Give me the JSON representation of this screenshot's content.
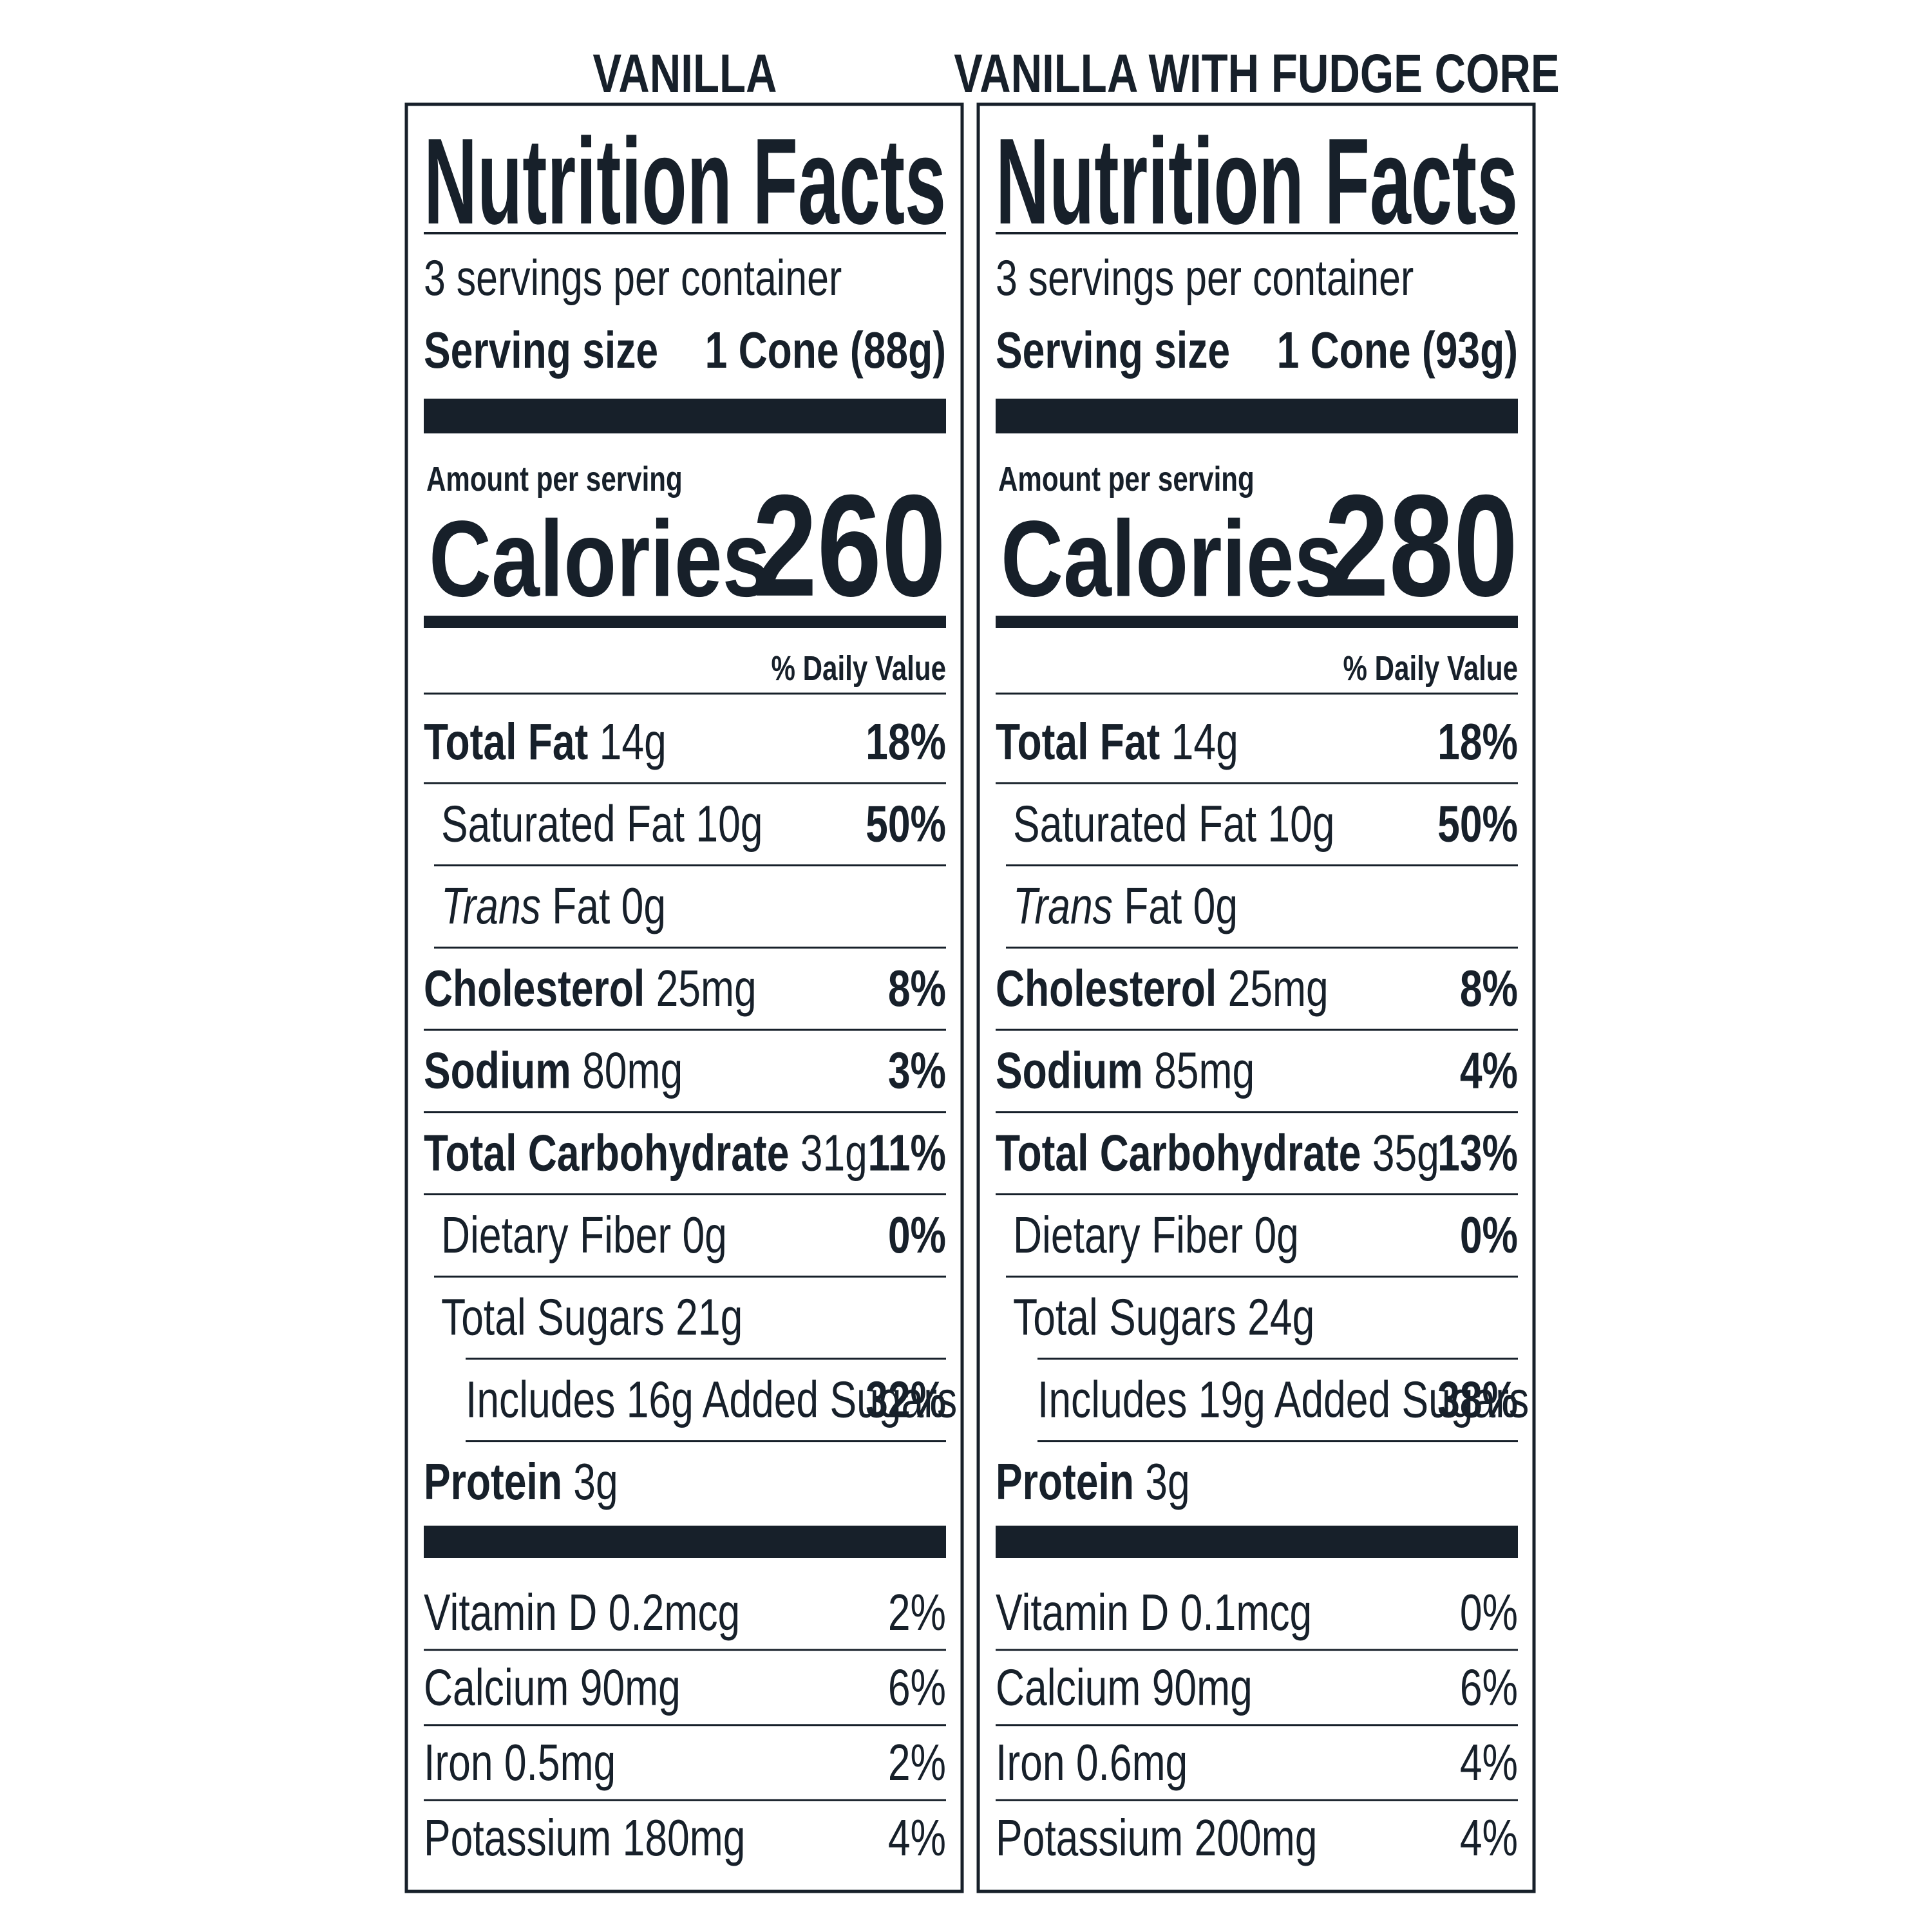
{
  "labels": [
    {
      "product": "VANILLA",
      "title": "Nutrition Facts",
      "servings": "3 servings per container",
      "serving_size_label": "Serving size",
      "serving_size": "1 Cone (88g)",
      "amount_per_serving": "Amount per serving",
      "calories_label": "Calories",
      "calories": "260",
      "daily_value_header": "% Daily Value",
      "nutrients": [
        {
          "name": "Total Fat",
          "amount": "14g",
          "dv": "18%"
        },
        {
          "name": "Saturated Fat",
          "amount": "10g",
          "dv": "50%"
        },
        {
          "name": "Trans",
          "amount": "Fat 0g"
        },
        {
          "name": "Cholesterol",
          "amount": "25mg",
          "dv": "8%"
        },
        {
          "name": "Sodium",
          "amount": "80mg",
          "dv": "3%"
        },
        {
          "name": "Total Carbohydrate",
          "amount": "31g",
          "dv": "11%"
        },
        {
          "name": "Dietary Fiber",
          "amount": "0g",
          "dv": "0%"
        },
        {
          "name": "Total Sugars",
          "amount": "21g"
        },
        {
          "name": "Includes 16g Added Sugars",
          "dv": "32%"
        },
        {
          "name": "Protein",
          "amount": "3g"
        }
      ],
      "vitamins": [
        {
          "name": "Vitamin D 0.2mcg",
          "dv": "2%"
        },
        {
          "name": "Calcium 90mg",
          "dv": "6%"
        },
        {
          "name": "Iron 0.5mg",
          "dv": "2%"
        },
        {
          "name": "Potassium 180mg",
          "dv": "4%"
        }
      ]
    },
    {
      "product": "VANILLA WITH FUDGE CORE",
      "title": "Nutrition Facts",
      "servings": "3 servings per container",
      "serving_size_label": "Serving size",
      "serving_size": "1 Cone (93g)",
      "amount_per_serving": "Amount per serving",
      "calories_label": "Calories",
      "calories": "280",
      "daily_value_header": "% Daily Value",
      "nutrients": [
        {
          "name": "Total Fat",
          "amount": "14g",
          "dv": "18%"
        },
        {
          "name": "Saturated Fat",
          "amount": "10g",
          "dv": "50%"
        },
        {
          "name": "Trans",
          "amount": "Fat 0g"
        },
        {
          "name": "Cholesterol",
          "amount": "25mg",
          "dv": "8%"
        },
        {
          "name": "Sodium",
          "amount": "85mg",
          "dv": "4%"
        },
        {
          "name": "Total Carbohydrate",
          "amount": "35g",
          "dv": "13%"
        },
        {
          "name": "Dietary Fiber",
          "amount": "0g",
          "dv": "0%"
        },
        {
          "name": "Total Sugars",
          "amount": "24g"
        },
        {
          "name": "Includes 19g Added Sugars",
          "dv": "38%"
        },
        {
          "name": "Protein",
          "amount": "3g"
        }
      ],
      "vitamins": [
        {
          "name": "Vitamin D 0.1mcg",
          "dv": "0%"
        },
        {
          "name": "Calcium 90mg",
          "dv": "6%"
        },
        {
          "name": "Iron 0.6mg",
          "dv": "4%"
        },
        {
          "name": "Potassium 200mg",
          "dv": "4%"
        }
      ]
    }
  ]
}
